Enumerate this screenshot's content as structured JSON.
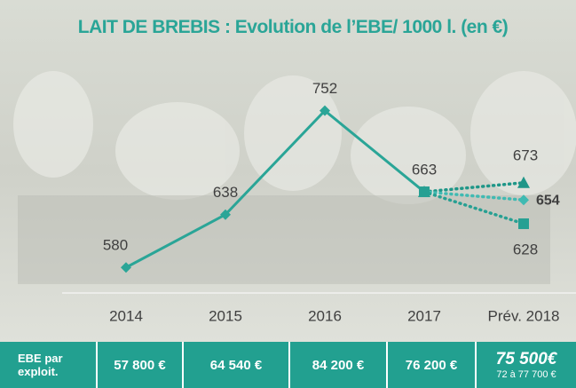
{
  "chart_data": {
    "type": "line",
    "title": "LAIT DE BREBIS : Evolution de l’EBE/ 1000 l. (en €)",
    "categories": [
      "2014",
      "2015",
      "2016",
      "2017",
      "Prév. 2018"
    ],
    "ylim": [
      552,
      815
    ],
    "series": [
      {
        "color": "#2aa597",
        "values": [
          580,
          638,
          752,
          663,
          null
        ],
        "line_style": "solid",
        "marker": "diamond"
      },
      {
        "color": "#1f9688",
        "values": [
          null,
          null,
          null,
          663,
          673
        ],
        "line_style": "dotted",
        "marker": "triangle"
      },
      {
        "color": "#3fbab2",
        "values": [
          null,
          null,
          null,
          663,
          654
        ],
        "line_style": "dotted",
        "marker": "diamond",
        "bold_label": true
      },
      {
        "color": "#27a093",
        "values": [
          null,
          null,
          null,
          663,
          628
        ],
        "line_style": "dotted",
        "marker": "square"
      }
    ]
  },
  "table": {
    "header": "EBE par exploit.",
    "cells": [
      "57 800 €",
      "64 540 €",
      "84 200 €",
      "76 200 €"
    ],
    "forecast": {
      "value": "75 500€",
      "range": "72 à 77 700 €"
    }
  }
}
